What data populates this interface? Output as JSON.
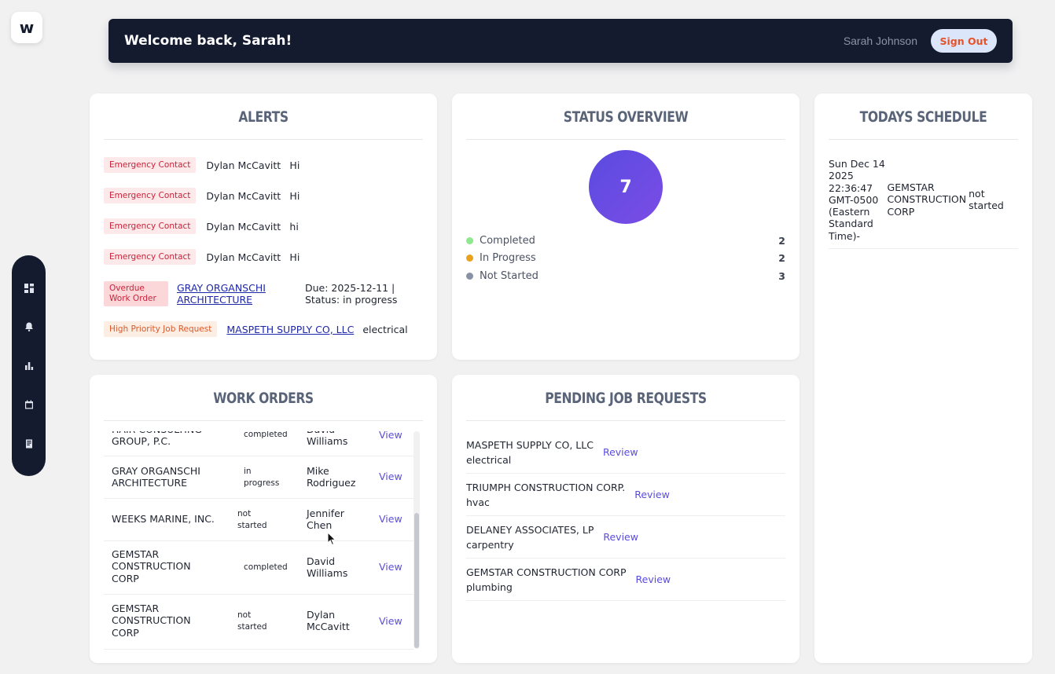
{
  "app": {
    "logo_text": "w"
  },
  "header": {
    "welcome": "Welcome back, Sarah!",
    "user_name": "Sarah Johnson",
    "sign_out_label": "Sign Out"
  },
  "sidebar": {
    "items": [
      {
        "name": "dashboard-icon"
      },
      {
        "name": "bell-icon"
      },
      {
        "name": "bar-chart-icon"
      },
      {
        "name": "calendar-icon"
      },
      {
        "name": "document-icon"
      }
    ]
  },
  "alerts": {
    "title": "ALERTS",
    "items": [
      {
        "badge": "Emergency Contact",
        "name": "Dylan McCavitt",
        "message": "Hi"
      },
      {
        "badge": "Emergency Contact",
        "name": "Dylan McCavitt",
        "message": "Hi"
      },
      {
        "badge": "Emergency Contact",
        "name": "Dylan McCavitt",
        "message": "hi"
      },
      {
        "badge": "Emergency Contact",
        "name": "Dylan McCavitt",
        "message": "Hi"
      },
      {
        "badge": "Overdue Work Order",
        "link": "GRAY ORGANSCHI ARCHITECTURE",
        "detail": "Due: 2025-12-11 | Status: in progress"
      },
      {
        "badge": "High Priority Job Request",
        "link": "MASPETH SUPPLY CO, LLC",
        "detail": "electrical"
      }
    ]
  },
  "status": {
    "title": "STATUS OVERVIEW",
    "total": "7",
    "legend": [
      {
        "label": "Completed",
        "count": "2",
        "color": "#8ee88e"
      },
      {
        "label": "In Progress",
        "count": "2",
        "color": "#e8a21e"
      },
      {
        "label": "Not Started",
        "count": "3",
        "color": "#8891a6"
      }
    ]
  },
  "schedule": {
    "title": "TODAYS SCHEDULE",
    "items": [
      {
        "time": "Sun Dec 14 2025 22:36:47 GMT-0500 (Eastern Standard Time)-",
        "company": "GEMSTAR CONSTRUCTION CORP",
        "status": "not started"
      }
    ]
  },
  "work_orders": {
    "title": "WORK ORDERS",
    "rows": [
      {
        "company": "HAIR CONSULTING GROUP, P.C.",
        "status": "completed",
        "tech": "David Williams",
        "action": "View"
      },
      {
        "company": "GRAY ORGANSCHI ARCHITECTURE",
        "status": "in progress",
        "tech": "Mike Rodriguez",
        "action": "View"
      },
      {
        "company": "WEEKS MARINE, INC.",
        "status": "not started",
        "tech": "Jennifer Chen",
        "action": "View"
      },
      {
        "company": "GEMSTAR CONSTRUCTION CORP",
        "status": "completed",
        "tech": "David Williams",
        "action": "View"
      },
      {
        "company": "GEMSTAR CONSTRUCTION CORP",
        "status": "not started",
        "tech": "Dylan McCavitt",
        "action": "View"
      }
    ]
  },
  "pending": {
    "title": "PENDING JOB REQUESTS",
    "items": [
      {
        "company": "MASPETH SUPPLY CO, LLC",
        "trade": "electrical",
        "action": "Review"
      },
      {
        "company": "TRIUMPH CONSTRUCTION CORP.",
        "trade": "hvac",
        "action": "Review"
      },
      {
        "company": "DELANEY ASSOCIATES, LP",
        "trade": "carpentry",
        "action": "Review"
      },
      {
        "company": "GEMSTAR CONSTRUCTION CORP",
        "trade": "plumbing",
        "action": "Review"
      }
    ]
  }
}
